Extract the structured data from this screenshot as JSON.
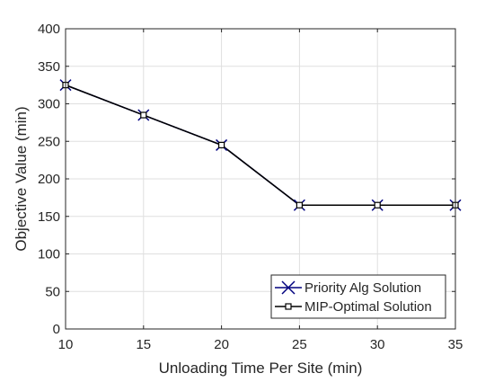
{
  "chart_data": {
    "type": "line",
    "xlabel": "Unloading Time Per Site (min)",
    "ylabel": "Objective Value (min)",
    "xlim": [
      10,
      35
    ],
    "ylim": [
      0,
      400
    ],
    "xticks": [
      10,
      15,
      20,
      25,
      30,
      35
    ],
    "yticks": [
      0,
      50,
      100,
      150,
      200,
      250,
      300,
      350,
      400
    ],
    "grid": true,
    "legend_location": "bottom-right",
    "x": [
      10,
      15,
      20,
      25,
      30,
      35
    ],
    "series": [
      {
        "name": "Priority Alg Solution",
        "values": [
          325,
          285,
          245,
          165,
          165,
          165
        ],
        "color": "#00007f",
        "marker": "x-cross"
      },
      {
        "name": "MIP-Optimal Solution",
        "values": [
          325,
          285,
          245,
          165,
          165,
          165
        ],
        "color": "#000000",
        "marker": "square"
      }
    ]
  }
}
